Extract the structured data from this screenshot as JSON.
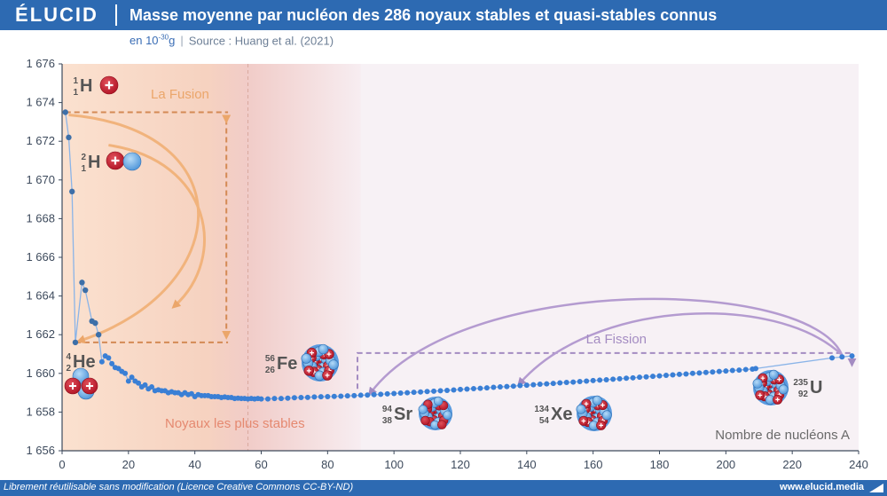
{
  "header": {
    "logo": "ÉLUCID",
    "title": "Masse moyenne par nucléon des 286 noyaux stables et quasi-stables connus",
    "unit_prefix": "en 10",
    "unit_exp": "-30",
    "unit_suffix": "g",
    "source": "Source : Huang et al. (2021)"
  },
  "footer": {
    "license": "Librement réutilisable sans modification (Licence Creative Commons CC-BY-ND)",
    "site": "www.elucid.media"
  },
  "colors": {
    "brand": "#2d6ab2",
    "series": "#3a7fd5",
    "fusion": "#eba66a",
    "fission": "#a48cc2",
    "stable": "#e58970"
  },
  "annotations": {
    "fusion": "La Fusion",
    "fission": "La Fission",
    "stable": "Noyaux les plus stables",
    "xlabel_inline": "Nombre de nucléons A"
  },
  "nuclides": [
    {
      "id": "H1",
      "mass": "1",
      "z": "1",
      "sym": "H"
    },
    {
      "id": "H2",
      "mass": "2",
      "z": "1",
      "sym": "H"
    },
    {
      "id": "He4",
      "mass": "4",
      "z": "2",
      "sym": "He"
    },
    {
      "id": "Fe56",
      "mass": "56",
      "z": "26",
      "sym": "Fe"
    },
    {
      "id": "Sr94",
      "mass": "94",
      "z": "38",
      "sym": "Sr"
    },
    {
      "id": "Xe134",
      "mass": "134",
      "z": "54",
      "sym": "Xe"
    },
    {
      "id": "U235",
      "mass": "235",
      "z": "92",
      "sym": "U"
    }
  ],
  "chart_data": {
    "type": "scatter",
    "title": "Masse moyenne par nucléon des 286 noyaux stables et quasi-stables connus",
    "xlabel": "Nombre de nucléons A",
    "ylabel": "",
    "xlim": [
      0,
      240
    ],
    "ylim": [
      1656,
      1676
    ],
    "xticks": [
      0,
      20,
      40,
      60,
      80,
      100,
      120,
      140,
      160,
      180,
      200,
      220,
      240
    ],
    "yticks": [
      1656,
      1658,
      1660,
      1662,
      1664,
      1666,
      1668,
      1670,
      1672,
      1674,
      1676
    ],
    "ytick_labels": [
      "1 656",
      "1 658",
      "1 660",
      "1 662",
      "1 664",
      "1 666",
      "1 668",
      "1 670",
      "1 672",
      "1 674",
      "1 676"
    ],
    "grid": false,
    "series": [
      {
        "points": [
          [
            1,
            1673.5
          ],
          [
            2,
            1672.2
          ],
          [
            3,
            1669.4
          ],
          [
            4,
            1661.6
          ],
          [
            6,
            1664.7
          ],
          [
            7,
            1664.3
          ],
          [
            9,
            1662.7
          ],
          [
            10,
            1662.6
          ],
          [
            11,
            1662.0
          ],
          [
            12,
            1660.6
          ],
          [
            13,
            1660.9
          ],
          [
            14,
            1660.8
          ],
          [
            15,
            1660.5
          ],
          [
            16,
            1660.3
          ],
          [
            17,
            1660.25
          ],
          [
            18,
            1660.1
          ],
          [
            19,
            1660.0
          ],
          [
            20,
            1659.6
          ],
          [
            21,
            1659.8
          ],
          [
            22,
            1659.6
          ],
          [
            23,
            1659.5
          ],
          [
            24,
            1659.3
          ],
          [
            25,
            1659.4
          ],
          [
            26,
            1659.2
          ],
          [
            27,
            1659.3
          ],
          [
            28,
            1659.1
          ],
          [
            29,
            1659.15
          ],
          [
            30,
            1659.1
          ],
          [
            31,
            1659.1
          ],
          [
            32,
            1659.0
          ],
          [
            33,
            1659.05
          ],
          [
            34,
            1659.0
          ],
          [
            35,
            1659.0
          ],
          [
            36,
            1658.9
          ],
          [
            37,
            1659.0
          ],
          [
            38,
            1658.9
          ],
          [
            39,
            1658.95
          ],
          [
            40,
            1658.8
          ],
          [
            41,
            1658.9
          ],
          [
            42,
            1658.85
          ],
          [
            43,
            1658.85
          ],
          [
            44,
            1658.85
          ],
          [
            45,
            1658.8
          ],
          [
            46,
            1658.8
          ],
          [
            47,
            1658.8
          ],
          [
            48,
            1658.75
          ],
          [
            49,
            1658.78
          ],
          [
            50,
            1658.75
          ],
          [
            51,
            1658.75
          ],
          [
            52,
            1658.7
          ],
          [
            53,
            1658.72
          ],
          [
            54,
            1658.7
          ],
          [
            55,
            1658.7
          ],
          [
            56,
            1658.68
          ],
          [
            57,
            1658.7
          ],
          [
            58,
            1658.68
          ],
          [
            59,
            1658.7
          ],
          [
            60,
            1658.68
          ],
          [
            62,
            1658.68
          ],
          [
            64,
            1658.7
          ],
          [
            66,
            1658.7
          ],
          [
            68,
            1658.72
          ],
          [
            70,
            1658.74
          ],
          [
            72,
            1658.75
          ],
          [
            74,
            1658.76
          ],
          [
            76,
            1658.78
          ],
          [
            78,
            1658.79
          ],
          [
            80,
            1658.8
          ],
          [
            82,
            1658.81
          ],
          [
            84,
            1658.82
          ],
          [
            86,
            1658.84
          ],
          [
            88,
            1658.85
          ],
          [
            90,
            1658.87
          ],
          [
            92,
            1658.88
          ],
          [
            94,
            1658.9
          ],
          [
            96,
            1658.92
          ],
          [
            98,
            1658.94
          ],
          [
            100,
            1658.96
          ],
          [
            102,
            1658.98
          ],
          [
            104,
            1659.0
          ],
          [
            106,
            1659.02
          ],
          [
            108,
            1659.04
          ],
          [
            110,
            1659.06
          ],
          [
            112,
            1659.08
          ],
          [
            114,
            1659.1
          ],
          [
            116,
            1659.12
          ],
          [
            118,
            1659.14
          ],
          [
            120,
            1659.17
          ],
          [
            122,
            1659.19
          ],
          [
            124,
            1659.21
          ],
          [
            126,
            1659.23
          ],
          [
            128,
            1659.25
          ],
          [
            130,
            1659.28
          ],
          [
            132,
            1659.3
          ],
          [
            134,
            1659.32
          ],
          [
            136,
            1659.34
          ],
          [
            138,
            1659.37
          ],
          [
            140,
            1659.39
          ],
          [
            142,
            1659.41
          ],
          [
            144,
            1659.44
          ],
          [
            146,
            1659.46
          ],
          [
            148,
            1659.48
          ],
          [
            150,
            1659.51
          ],
          [
            152,
            1659.53
          ],
          [
            154,
            1659.55
          ],
          [
            156,
            1659.58
          ],
          [
            158,
            1659.6
          ],
          [
            160,
            1659.63
          ],
          [
            162,
            1659.65
          ],
          [
            164,
            1659.67
          ],
          [
            166,
            1659.7
          ],
          [
            168,
            1659.72
          ],
          [
            170,
            1659.75
          ],
          [
            172,
            1659.77
          ],
          [
            174,
            1659.8
          ],
          [
            176,
            1659.82
          ],
          [
            178,
            1659.85
          ],
          [
            180,
            1659.87
          ],
          [
            182,
            1659.9
          ],
          [
            184,
            1659.92
          ],
          [
            186,
            1659.95
          ],
          [
            188,
            1659.97
          ],
          [
            190,
            1660.0
          ],
          [
            192,
            1660.02
          ],
          [
            194,
            1660.05
          ],
          [
            196,
            1660.07
          ],
          [
            198,
            1660.1
          ],
          [
            200,
            1660.12
          ],
          [
            202,
            1660.15
          ],
          [
            204,
            1660.17
          ],
          [
            206,
            1660.2
          ],
          [
            208,
            1660.22
          ],
          [
            209,
            1660.25
          ],
          [
            232,
            1660.8
          ],
          [
            235,
            1660.85
          ],
          [
            238,
            1660.9
          ]
        ]
      }
    ],
    "highlights": [
      {
        "label": "1H",
        "x": 1,
        "y": 1673.5
      },
      {
        "label": "2H",
        "x": 2,
        "y": 1672.2
      },
      {
        "label": "4He",
        "x": 4,
        "y": 1661.6
      },
      {
        "label": "56Fe",
        "x": 56,
        "y": 1658.68
      },
      {
        "label": "94Sr",
        "x": 94,
        "y": 1658.9
      },
      {
        "label": "134Xe",
        "x": 134,
        "y": 1659.32
      },
      {
        "label": "235U",
        "x": 235,
        "y": 1660.85
      }
    ]
  }
}
